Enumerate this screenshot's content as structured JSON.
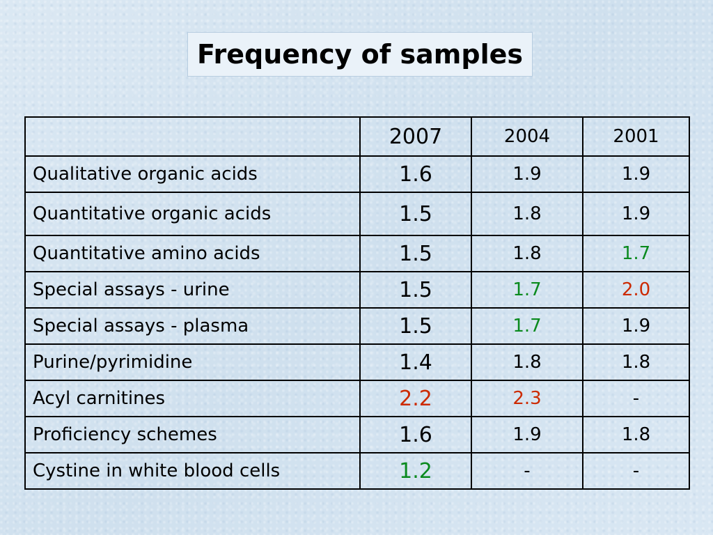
{
  "title": "Frequency of samples",
  "colors": {
    "normal": "#000000",
    "green": "#0a8a1e",
    "red": "#cc2a00"
  },
  "table": {
    "headers": [
      "",
      "2007",
      "2004",
      "2001"
    ],
    "rows": [
      {
        "label": "Qualitative organic acids",
        "y2007": "1.6",
        "y2004": "1.9",
        "y2001": "1.9",
        "c2007": "normal",
        "c2004": "normal",
        "c2001": "normal"
      },
      {
        "label": "Quantitative organic acids",
        "y2007": "1.5",
        "y2004": "1.8",
        "y2001": "1.9",
        "c2007": "normal",
        "c2004": "normal",
        "c2001": "normal"
      },
      {
        "label": "Quantitative amino acids",
        "y2007": "1.5",
        "y2004": "1.8",
        "y2001": "1.7",
        "c2007": "normal",
        "c2004": "normal",
        "c2001": "green"
      },
      {
        "label": "Special assays - urine",
        "y2007": "1.5",
        "y2004": "1.7",
        "y2001": "2.0",
        "c2007": "normal",
        "c2004": "green",
        "c2001": "red"
      },
      {
        "label": "Special assays - plasma",
        "y2007": "1.5",
        "y2004": "1.7",
        "y2001": "1.9",
        "c2007": "normal",
        "c2004": "green",
        "c2001": "normal"
      },
      {
        "label": "Purine/pyrimidine",
        "y2007": "1.4",
        "y2004": "1.8",
        "y2001": "1.8",
        "c2007": "normal",
        "c2004": "normal",
        "c2001": "normal"
      },
      {
        "label": "Acyl carnitines",
        "y2007": "2.2",
        "y2004": "2.3",
        "y2001": "-",
        "c2007": "red",
        "c2004": "red",
        "c2001": "normal"
      },
      {
        "label": "Proficiency schemes",
        "y2007": "1.6",
        "y2004": "1.9",
        "y2001": "1.8",
        "c2007": "normal",
        "c2004": "normal",
        "c2001": "normal"
      },
      {
        "label": "Cystine in white blood cells",
        "y2007": "1.2",
        "y2004": "-",
        "y2001": "-",
        "c2007": "green",
        "c2004": "normal",
        "c2001": "normal"
      }
    ]
  }
}
